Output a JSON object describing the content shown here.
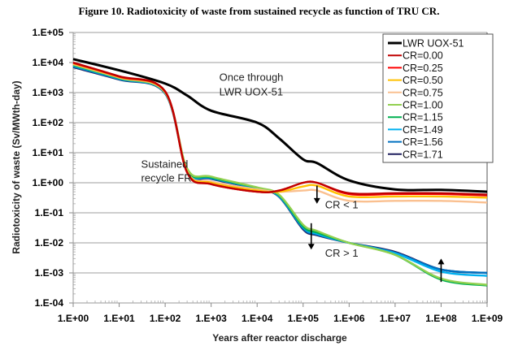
{
  "title": "Figure 10. Radiotoxicity of waste from sustained recycle as function of TRU CR.",
  "chart_data": {
    "type": "line",
    "title": "Figure 10. Radiotoxicity of waste from sustained recycle as function of TRU CR.",
    "xlabel": "Years after reactor discharge",
    "ylabel": "Radiotoxicity of waste (Sv/MWth-day)",
    "xscale": "log",
    "yscale": "log",
    "xlim": [
      1,
      1000000000
    ],
    "ylim": [
      0.0001,
      100000
    ],
    "grid": "horizontal",
    "legend_position": "top-right",
    "xticks": [
      "1.E+00",
      "1.E+01",
      "1.E+02",
      "1.E+03",
      "1.E+04",
      "1.E+05",
      "1.E+06",
      "1.E+07",
      "1.E+08",
      "1.E+09"
    ],
    "yticks": [
      "1.E+05",
      "1.E+04",
      "1.E+03",
      "1.E+02",
      "1.E+01",
      "1.E+00",
      "1.E-01",
      "1.E-02",
      "1.E-03",
      "1.E-04"
    ],
    "annotations": [
      {
        "text": "Once through",
        "x": 1500,
        "y": 2500
      },
      {
        "text": "LWR UOX-51",
        "x": 1500,
        "y": 800
      },
      {
        "text": "Sustained",
        "x": 30,
        "y": 3.2
      },
      {
        "text": "recycle FR",
        "x": 30,
        "y": 1.1
      },
      {
        "text": "CR < 1",
        "x": 300000,
        "y": 0.14
      },
      {
        "text": "CR > 1",
        "x": 300000,
        "y": 0.0035
      }
    ],
    "arrows": [
      {
        "direction": "down",
        "x": 200000,
        "y_from": 0.8,
        "y_to": 0.2
      },
      {
        "direction": "down",
        "x": 150000,
        "y_from": 0.045,
        "y_to": 0.006
      },
      {
        "direction": "up",
        "x": 100000000,
        "y_from": 0.0005,
        "y_to": 0.003
      }
    ],
    "x": [
      1,
      10,
      100,
      300,
      1000,
      10000,
      30000,
      100000,
      200000,
      1000000,
      10000000,
      100000000,
      1000000000
    ],
    "series": [
      {
        "name": "LWR UOX-51",
        "color": "#000000",
        "values": [
          13000,
          5500,
          2000,
          800,
          250,
          100,
          30,
          6,
          4.5,
          1.2,
          0.6,
          0.58,
          0.5
        ]
      },
      {
        "name": "CR=0.00",
        "color": "#c00000",
        "values": [
          10000,
          3500,
          1100,
          2.2,
          0.9,
          0.5,
          0.55,
          1.0,
          1.0,
          0.45,
          0.45,
          0.45,
          0.4
        ]
      },
      {
        "name": "CR=0.25",
        "color": "#ff0000",
        "values": [
          9800,
          3400,
          1080,
          2.2,
          0.9,
          0.5,
          0.55,
          1.0,
          1.0,
          0.42,
          0.42,
          0.42,
          0.38
        ]
      },
      {
        "name": "CR=0.50",
        "color": "#ffc000",
        "values": [
          9400,
          3300,
          1050,
          2.3,
          1.0,
          0.55,
          0.5,
          0.75,
          0.8,
          0.35,
          0.35,
          0.35,
          0.32
        ]
      },
      {
        "name": "CR=0.75",
        "color": "#fac090",
        "values": [
          9000,
          3200,
          1020,
          2.4,
          1.1,
          0.6,
          0.5,
          0.55,
          0.55,
          0.25,
          0.25,
          0.25,
          0.22
        ]
      },
      {
        "name": "CR=1.00",
        "color": "#92d050",
        "values": [
          8600,
          3100,
          1000,
          3.0,
          1.6,
          0.7,
          0.4,
          0.04,
          0.025,
          0.01,
          0.004,
          0.00065,
          0.0004
        ]
      },
      {
        "name": "CR=1.15",
        "color": "#00b050",
        "values": [
          8200,
          3000,
          980,
          2.8,
          1.5,
          0.68,
          0.38,
          0.035,
          0.022,
          0.01,
          0.004,
          0.0006,
          0.00038
        ]
      },
      {
        "name": "CR=1.49",
        "color": "#00b0f0",
        "values": [
          7800,
          2900,
          960,
          2.6,
          1.45,
          0.66,
          0.36,
          0.033,
          0.02,
          0.01,
          0.0045,
          0.0011,
          0.0008
        ]
      },
      {
        "name": "CR=1.56",
        "color": "#0070c0",
        "values": [
          7400,
          2800,
          940,
          2.5,
          1.4,
          0.64,
          0.35,
          0.03,
          0.019,
          0.01,
          0.0047,
          0.0013,
          0.001
        ]
      },
      {
        "name": "CR=1.71",
        "color": "#1f1f5f",
        "values": [
          7000,
          2700,
          920,
          2.4,
          1.35,
          0.62,
          0.34,
          0.028,
          0.018,
          0.01,
          0.005,
          0.0013,
          0.001
        ]
      }
    ]
  }
}
